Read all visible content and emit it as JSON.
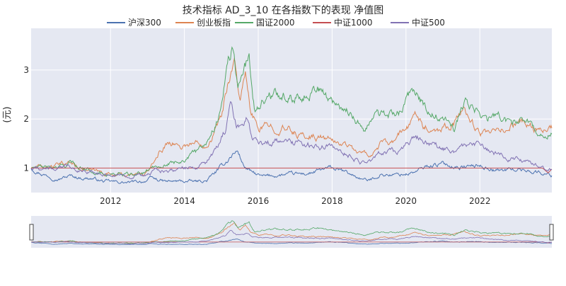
{
  "chart_data": {
    "type": "line",
    "title": "技术指标  AD_3_10  在各指数下的表现  净值图",
    "ylabel": "(元)",
    "xlabel": "",
    "x_range": [
      2009.85,
      2023.95
    ],
    "ylim": [
      0.5,
      3.85
    ],
    "x_ticks": [
      2012,
      2014,
      2016,
      2018,
      2020,
      2022
    ],
    "x_tick_labels": [
      "2012",
      "2014",
      "2016",
      "2018",
      "2020",
      "2022"
    ],
    "y_ticks": [
      1,
      2,
      3
    ],
    "y_tick_labels": [
      "1",
      "2",
      "3"
    ],
    "grid": true,
    "legend_position": "top-center",
    "background_color": "#e5e8f2",
    "range_slider": true,
    "series": [
      {
        "name": "沪深300",
        "color": "#4c72b0",
        "x": [
          2009.85,
          2010.2,
          2010.6,
          2010.9,
          2011.2,
          2011.5,
          2011.8,
          2012.2,
          2012.5,
          2012.9,
          2013.1,
          2013.5,
          2013.9,
          2014.3,
          2014.6,
          2014.9,
          2015.1,
          2015.3,
          2015.45,
          2015.6,
          2015.8,
          2016.1,
          2016.5,
          2016.9,
          2017.3,
          2017.7,
          2018.0,
          2018.4,
          2018.8,
          2019.0,
          2019.3,
          2019.7,
          2020.0,
          2020.3,
          2020.6,
          2021.0,
          2021.5,
          2022.0,
          2022.5,
          2023.0,
          2023.5,
          2023.95
        ],
        "y": [
          1.0,
          0.87,
          0.78,
          0.84,
          0.8,
          0.79,
          0.73,
          0.71,
          0.7,
          0.73,
          0.79,
          0.72,
          0.73,
          0.72,
          0.74,
          0.95,
          1.1,
          1.28,
          1.35,
          1.05,
          0.92,
          0.82,
          0.85,
          0.87,
          0.88,
          0.95,
          1.0,
          0.9,
          0.78,
          0.74,
          0.87,
          0.86,
          0.88,
          0.93,
          1.05,
          1.08,
          1.02,
          1.05,
          0.95,
          0.98,
          0.93,
          0.85
        ]
      },
      {
        "name": "创业板指",
        "color": "#dd8452",
        "x": [
          2009.85,
          2010.2,
          2010.6,
          2010.9,
          2011.2,
          2011.5,
          2011.8,
          2012.2,
          2012.5,
          2012.9,
          2013.1,
          2013.3,
          2013.6,
          2013.9,
          2014.3,
          2014.6,
          2014.8,
          2015.0,
          2015.2,
          2015.35,
          2015.5,
          2015.65,
          2015.8,
          2016.0,
          2016.4,
          2016.8,
          2017.2,
          2017.6,
          2018.0,
          2018.4,
          2018.8,
          2019.1,
          2019.3,
          2019.6,
          2019.9,
          2020.1,
          2020.3,
          2020.5,
          2020.9,
          2021.3,
          2021.6,
          2021.9,
          2022.2,
          2022.6,
          2023.0,
          2023.4,
          2023.8,
          2023.95
        ],
        "y": [
          1.0,
          1.02,
          1.05,
          1.12,
          1.0,
          0.94,
          0.9,
          0.88,
          0.85,
          0.87,
          1.0,
          1.3,
          1.55,
          1.45,
          1.52,
          1.5,
          1.72,
          2.05,
          2.85,
          3.2,
          2.4,
          2.85,
          2.1,
          1.8,
          1.85,
          1.78,
          1.65,
          1.65,
          1.55,
          1.48,
          1.28,
          1.3,
          1.5,
          1.45,
          1.75,
          1.85,
          2.15,
          1.85,
          1.8,
          1.95,
          2.2,
          1.8,
          1.65,
          1.75,
          1.95,
          1.85,
          1.72,
          1.8
        ]
      },
      {
        "name": "国证2000",
        "color": "#55a868",
        "x": [
          2009.85,
          2010.2,
          2010.6,
          2010.9,
          2011.2,
          2011.5,
          2011.8,
          2012.2,
          2012.5,
          2012.9,
          2013.2,
          2013.6,
          2013.9,
          2014.3,
          2014.6,
          2014.8,
          2015.0,
          2015.15,
          2015.3,
          2015.45,
          2015.6,
          2015.75,
          2015.9,
          2016.1,
          2016.5,
          2016.9,
          2017.3,
          2017.6,
          2017.9,
          2018.3,
          2018.6,
          2018.9,
          2019.2,
          2019.5,
          2019.8,
          2020.1,
          2020.3,
          2020.6,
          2020.9,
          2021.3,
          2021.6,
          2021.9,
          2022.2,
          2022.5,
          2022.8,
          2023.1,
          2023.5,
          2023.8,
          2023.95
        ],
        "y": [
          1.0,
          1.02,
          1.0,
          1.1,
          1.02,
          0.95,
          0.88,
          0.88,
          0.85,
          0.9,
          1.05,
          1.1,
          1.15,
          1.3,
          1.55,
          1.85,
          2.2,
          3.2,
          3.45,
          2.6,
          3.05,
          3.25,
          2.2,
          2.4,
          2.5,
          2.45,
          2.55,
          2.65,
          2.4,
          2.25,
          2.05,
          1.78,
          2.1,
          2.05,
          2.15,
          2.45,
          2.55,
          2.1,
          2.05,
          1.8,
          2.35,
          2.15,
          1.95,
          2.15,
          1.85,
          2.05,
          1.8,
          1.62,
          1.75
        ]
      },
      {
        "name": "中证1000",
        "color": "#c44e52",
        "x": [
          2009.85,
          2012.0,
          2015.0,
          2018.0,
          2021.0,
          2023.7,
          2023.85,
          2023.95
        ],
        "y": [
          1.0,
          1.0,
          1.0,
          1.0,
          1.0,
          1.0,
          0.9,
          0.98
        ]
      },
      {
        "name": "中证500",
        "color": "#8172b3",
        "x": [
          2009.85,
          2010.2,
          2010.6,
          2010.9,
          2011.2,
          2011.5,
          2011.8,
          2012.2,
          2012.5,
          2012.9,
          2013.2,
          2013.6,
          2013.9,
          2014.3,
          2014.6,
          2014.9,
          2015.1,
          2015.25,
          2015.4,
          2015.55,
          2015.7,
          2015.85,
          2016.1,
          2016.5,
          2016.9,
          2017.3,
          2017.7,
          2018.0,
          2018.4,
          2018.8,
          2019.1,
          2019.4,
          2019.8,
          2020.1,
          2020.3,
          2020.6,
          2021.0,
          2021.4,
          2021.7,
          2022.0,
          2022.4,
          2022.8,
          2023.2,
          2023.6,
          2023.95
        ],
        "y": [
          1.0,
          1.0,
          0.98,
          1.05,
          0.95,
          0.93,
          0.87,
          0.86,
          0.82,
          0.85,
          0.92,
          0.98,
          1.0,
          1.02,
          1.1,
          1.4,
          1.75,
          2.4,
          1.85,
          1.85,
          2.1,
          1.6,
          1.5,
          1.55,
          1.52,
          1.5,
          1.45,
          1.45,
          1.3,
          1.12,
          1.15,
          1.35,
          1.3,
          1.55,
          1.6,
          1.5,
          1.4,
          1.35,
          1.5,
          1.45,
          1.3,
          1.2,
          1.15,
          1.05,
          1.0
        ]
      }
    ]
  }
}
